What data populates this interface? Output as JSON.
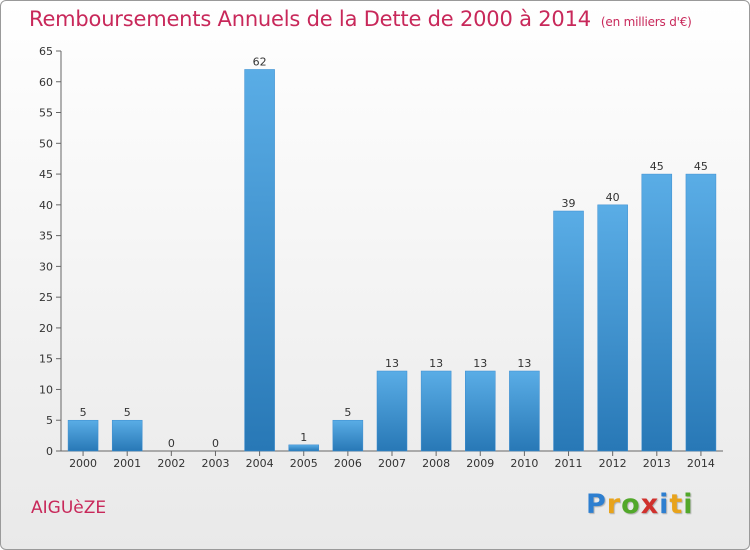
{
  "chart_data": {
    "type": "bar",
    "title": "Remboursements Annuels de la Dette de 2000 à 2014",
    "subtitle": "(en milliers d'€)",
    "categories": [
      "2000",
      "2001",
      "2002",
      "2003",
      "2004",
      "2005",
      "2006",
      "2007",
      "2008",
      "2009",
      "2010",
      "2011",
      "2012",
      "2013",
      "2014"
    ],
    "values": [
      5,
      5,
      0,
      0,
      62,
      1,
      5,
      13,
      13,
      13,
      13,
      39,
      40,
      45,
      45
    ],
    "data_labels": [
      "5",
      "5",
      "0",
      "0",
      "62",
      "1",
      "5",
      "13",
      "13",
      "13",
      "13",
      "39",
      "40",
      "45",
      "45"
    ],
    "ylim": [
      0,
      65
    ],
    "yticks": [
      0,
      5,
      10,
      15,
      20,
      25,
      30,
      35,
      40,
      45,
      50,
      55,
      60,
      65
    ],
    "grid": false,
    "colors": {
      "bar_top": "#5aade6",
      "bar_bottom": "#2878b6",
      "title": "#c8285a"
    }
  },
  "commune": "AIGUèZE",
  "logo": {
    "letters": [
      "P",
      "r",
      "o",
      "x",
      "i",
      "t",
      "i"
    ],
    "colors": [
      "#2e7fd0",
      "#e8a31b",
      "#52a82a",
      "#d0312d",
      "#2e7fd0",
      "#e8a31b",
      "#52a82a"
    ]
  }
}
